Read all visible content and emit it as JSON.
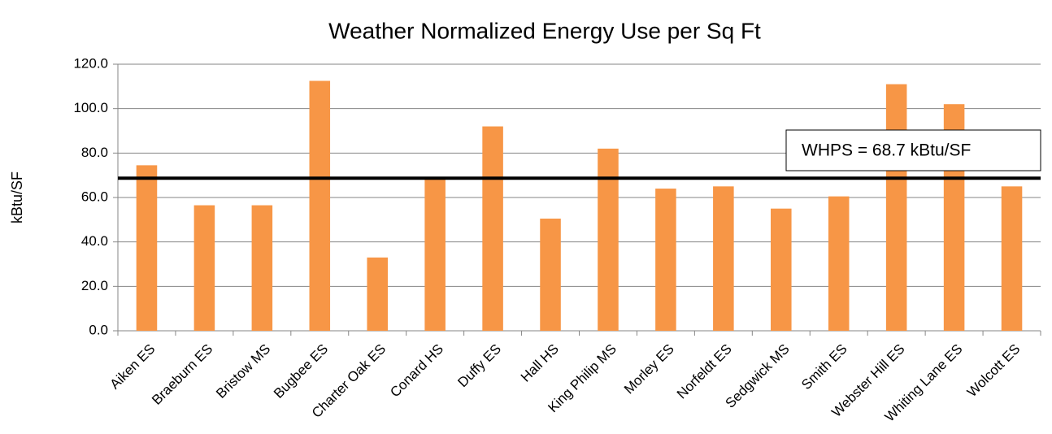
{
  "chart_data": {
    "type": "bar",
    "title": "Weather Normalized Energy Use per Sq Ft",
    "y_label": "kBtu/SF",
    "categories": [
      "Aiken ES",
      "Braeburn ES",
      "Bristow MS",
      "Bugbee ES",
      "Charter Oak ES",
      "Conard HS",
      "Duffy ES",
      "Hall HS",
      "King Philip MS",
      "Morley ES",
      "Norfeldt ES",
      "Sedgwick MS",
      "Smith ES",
      "Webster Hill ES",
      "Whiting Lane ES",
      "Wolcott ES"
    ],
    "values": [
      74.5,
      56.5,
      56.5,
      112.5,
      33,
      68.5,
      92,
      50.5,
      82,
      64,
      65,
      55,
      60.5,
      111,
      102,
      65
    ],
    "color": "#f79646",
    "ylim": [
      0,
      120
    ],
    "yticks": [
      {
        "value": 0,
        "label": "0.0"
      },
      {
        "value": 20,
        "label": "20.0"
      },
      {
        "value": 40,
        "label": "40.0"
      },
      {
        "value": 60,
        "label": "60.0"
      },
      {
        "value": 80,
        "label": "80.0"
      },
      {
        "value": 100,
        "label": "100.0"
      },
      {
        "value": 120,
        "label": "120.0"
      }
    ],
    "grid": true,
    "reference_line": {
      "value": 68.7,
      "label": "WHPS = 68.7 kBtu/SF",
      "color": "#000000"
    }
  }
}
